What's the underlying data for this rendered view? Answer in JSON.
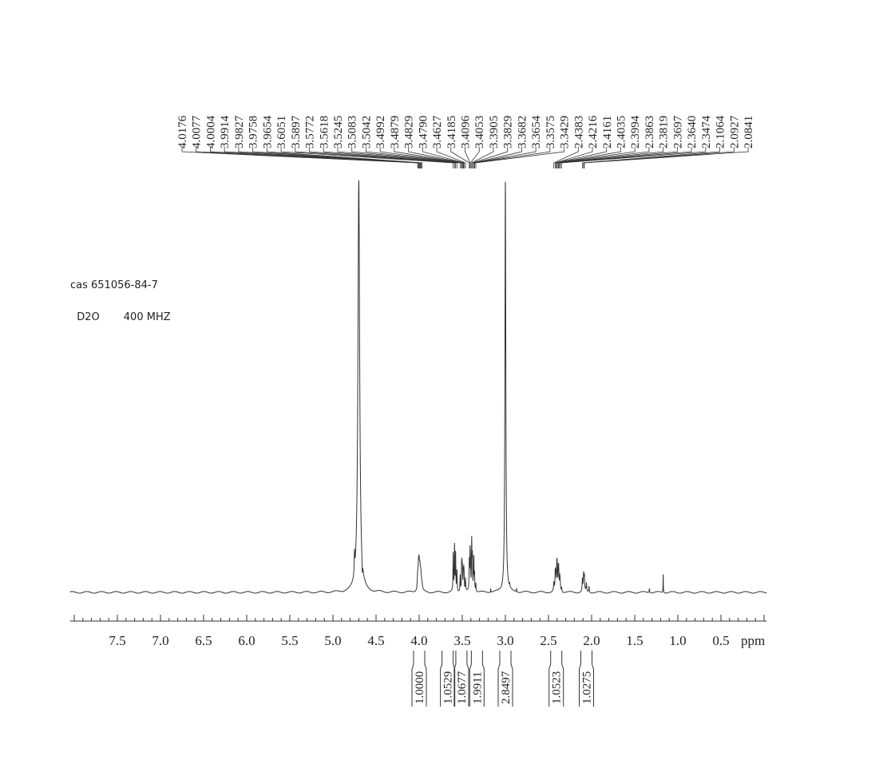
{
  "sample_info": {
    "cas": "cas 651056-84-7",
    "solvent": "D2O",
    "frequency": "400 MHZ"
  },
  "chart_data": {
    "type": "line",
    "title": "",
    "xlabel": "ppm",
    "ylabel": "",
    "xlim": [
      8.05,
      -0.03
    ],
    "x_reversed": true,
    "ylim": [
      -0.04,
      1.0
    ],
    "grid": false,
    "x_tick_labels": [
      "7.5",
      "7.0",
      "6.5",
      "6.0",
      "5.5",
      "5.0",
      "4.5",
      "4.0",
      "3.5",
      "3.0",
      "2.5",
      "2.0",
      "1.5",
      "1.0",
      "0.5"
    ],
    "x_ticks": [
      7.5,
      7.0,
      6.5,
      6.0,
      5.5,
      5.0,
      4.5,
      4.0,
      3.5,
      3.0,
      2.5,
      2.0,
      1.5,
      1.0,
      0.5
    ],
    "line_color": "#333333",
    "peak_labels": [
      "4.0176",
      "4.0077",
      "4.0004",
      "3.9914",
      "3.9827",
      "3.9758",
      "3.9654",
      "3.6051",
      "3.5897",
      "3.5772",
      "3.5618",
      "3.5245",
      "3.5083",
      "3.5042",
      "3.4992",
      "3.4879",
      "3.4829",
      "3.4790",
      "3.4627",
      "3.4185",
      "3.4096",
      "3.4053",
      "3.3905",
      "3.3829",
      "3.3682",
      "3.3654",
      "3.3575",
      "3.3429",
      "2.4383",
      "2.4216",
      "2.4161",
      "2.4035",
      "2.3994",
      "2.3863",
      "2.3819",
      "2.3697",
      "2.3640",
      "2.3474",
      "2.1064",
      "2.0927",
      "2.0841"
    ],
    "peaks": [
      {
        "ppm": 4.7,
        "intensity": 1.0,
        "width": 0.012
      },
      {
        "ppm": 4.75,
        "intensity": 0.05,
        "width": 0.004
      },
      {
        "ppm": 4.66,
        "intensity": -0.035,
        "width": 0.003
      },
      {
        "ppm": 3.0,
        "intensity": 1.0,
        "width": 0.006
      },
      {
        "ppm": 4.0176,
        "intensity": 0.03,
        "width": 0.006
      },
      {
        "ppm": 4.0077,
        "intensity": 0.05,
        "width": 0.006
      },
      {
        "ppm": 4.0004,
        "intensity": 0.05,
        "width": 0.006
      },
      {
        "ppm": 3.9914,
        "intensity": 0.04,
        "width": 0.006
      },
      {
        "ppm": 3.9827,
        "intensity": 0.03,
        "width": 0.006
      },
      {
        "ppm": 3.9758,
        "intensity": 0.02,
        "width": 0.006
      },
      {
        "ppm": 3.9654,
        "intensity": 0.01,
        "width": 0.006
      },
      {
        "ppm": 3.6051,
        "intensity": 0.09,
        "width": 0.003
      },
      {
        "ppm": 3.5897,
        "intensity": 0.11,
        "width": 0.003
      },
      {
        "ppm": 3.5772,
        "intensity": 0.09,
        "width": 0.003
      },
      {
        "ppm": 3.5618,
        "intensity": 0.05,
        "width": 0.003
      },
      {
        "ppm": 3.5245,
        "intensity": 0.04,
        "width": 0.003
      },
      {
        "ppm": 3.5083,
        "intensity": 0.05,
        "width": 0.003
      },
      {
        "ppm": 3.5042,
        "intensity": 0.05,
        "width": 0.003
      },
      {
        "ppm": 3.4992,
        "intensity": 0.05,
        "width": 0.003
      },
      {
        "ppm": 3.4879,
        "intensity": 0.04,
        "width": 0.003
      },
      {
        "ppm": 3.4829,
        "intensity": 0.04,
        "width": 0.003
      },
      {
        "ppm": 3.479,
        "intensity": 0.03,
        "width": 0.003
      },
      {
        "ppm": 3.4627,
        "intensity": 0.03,
        "width": 0.003
      },
      {
        "ppm": 3.4185,
        "intensity": 0.07,
        "width": 0.003
      },
      {
        "ppm": 3.4096,
        "intensity": 0.08,
        "width": 0.003
      },
      {
        "ppm": 3.4053,
        "intensity": 0.06,
        "width": 0.003
      },
      {
        "ppm": 3.3905,
        "intensity": 0.12,
        "width": 0.003
      },
      {
        "ppm": 3.3829,
        "intensity": 0.08,
        "width": 0.003
      },
      {
        "ppm": 3.3682,
        "intensity": 0.05,
        "width": 0.003
      },
      {
        "ppm": 3.3654,
        "intensity": 0.05,
        "width": 0.003
      },
      {
        "ppm": 3.3575,
        "intensity": 0.04,
        "width": 0.003
      },
      {
        "ppm": 3.3429,
        "intensity": 0.02,
        "width": 0.003
      },
      {
        "ppm": 3.17,
        "intensity": 0.008,
        "width": 0.003
      },
      {
        "ppm": 2.95,
        "intensity": 0.008,
        "width": 0.003
      },
      {
        "ppm": 2.87,
        "intensity": 0.008,
        "width": 0.003
      },
      {
        "ppm": 2.4383,
        "intensity": 0.02,
        "width": 0.004
      },
      {
        "ppm": 2.4216,
        "intensity": 0.04,
        "width": 0.004
      },
      {
        "ppm": 2.4161,
        "intensity": 0.03,
        "width": 0.004
      },
      {
        "ppm": 2.4035,
        "intensity": 0.05,
        "width": 0.004
      },
      {
        "ppm": 2.3994,
        "intensity": 0.04,
        "width": 0.004
      },
      {
        "ppm": 2.3863,
        "intensity": 0.04,
        "width": 0.004
      },
      {
        "ppm": 2.3819,
        "intensity": 0.04,
        "width": 0.004
      },
      {
        "ppm": 2.3697,
        "intensity": 0.03,
        "width": 0.004
      },
      {
        "ppm": 2.364,
        "intensity": 0.02,
        "width": 0.004
      },
      {
        "ppm": 2.3474,
        "intensity": 0.01,
        "width": 0.004
      },
      {
        "ppm": 2.1064,
        "intensity": 0.03,
        "width": 0.004
      },
      {
        "ppm": 2.0927,
        "intensity": 0.04,
        "width": 0.004
      },
      {
        "ppm": 2.0841,
        "intensity": 0.035,
        "width": 0.004
      },
      {
        "ppm": 2.06,
        "intensity": 0.02,
        "width": 0.004
      },
      {
        "ppm": 2.03,
        "intensity": 0.015,
        "width": 0.003
      },
      {
        "ppm": 1.33,
        "intensity": 0.01,
        "width": 0.004
      },
      {
        "ppm": 1.17,
        "intensity": 0.045,
        "width": 0.002
      }
    ],
    "integrals": [
      {
        "ppm": 4.0,
        "value": "1.0000"
      },
      {
        "ppm": 3.67,
        "value": "1.0529"
      },
      {
        "ppm": 3.51,
        "value": "1.0677"
      },
      {
        "ppm": 3.33,
        "value": "1.9911"
      },
      {
        "ppm": 3.0,
        "value": "2.8497"
      },
      {
        "ppm": 2.41,
        "value": "1.0523"
      },
      {
        "ppm": 2.06,
        "value": "1.0275"
      }
    ]
  }
}
